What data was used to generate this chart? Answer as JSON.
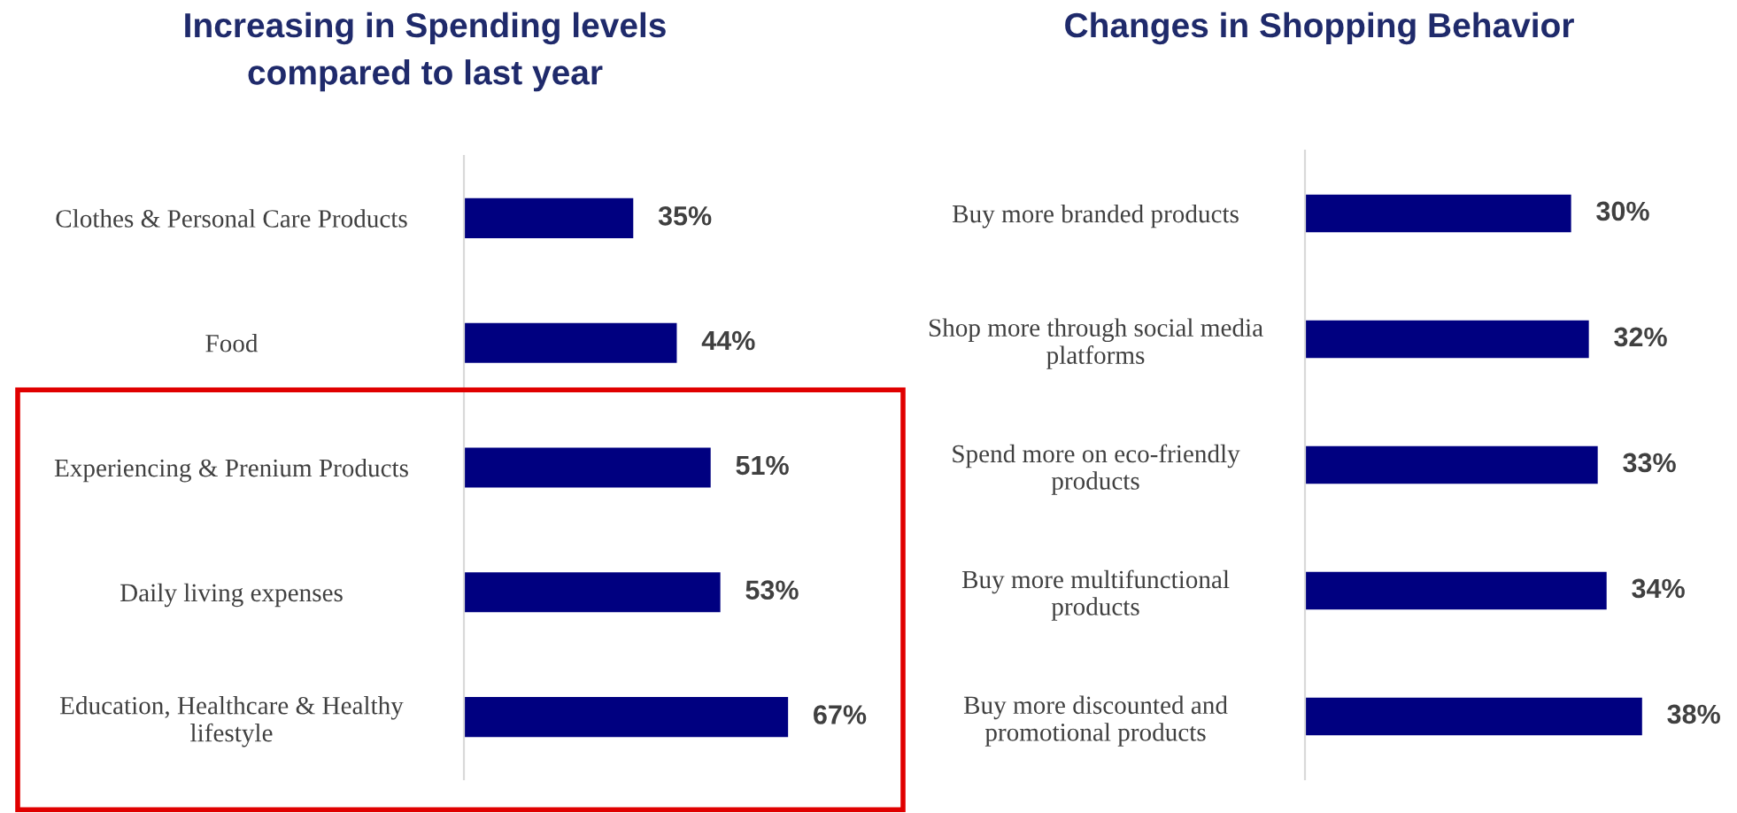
{
  "chart_data": [
    {
      "type": "bar",
      "orientation": "horizontal",
      "title": "Increasing in Spending levels\ncompared to last year",
      "categories": [
        "Clothes & Personal Care Products",
        "Food",
        "Experiencing & Prenium Products",
        "Daily living expenses",
        "Education, Healthcare & Healthy\nlifestyle"
      ],
      "values": [
        35,
        44,
        51,
        53,
        67
      ],
      "color": "#000080",
      "data_labels": true,
      "value_labels": [
        "35%",
        "44%",
        "51%",
        "53%",
        "67%"
      ],
      "grid": false,
      "legend": false
    },
    {
      "type": "bar",
      "orientation": "horizontal",
      "title": "Changes in Shopping Behavior",
      "categories": [
        "Buy more branded products",
        "Shop more through social media\nplatforms",
        "Spend more on eco-friendly\nproducts",
        "Buy more multifunctional\nproducts",
        "Buy more discounted and\npromotional products"
      ],
      "values": [
        30,
        32,
        33,
        34,
        38
      ],
      "color": "#000080",
      "data_labels": true,
      "value_labels": [
        "30%",
        "32%",
        "33%",
        "34%",
        "38%"
      ],
      "grid": false,
      "legend": false
    }
  ]
}
